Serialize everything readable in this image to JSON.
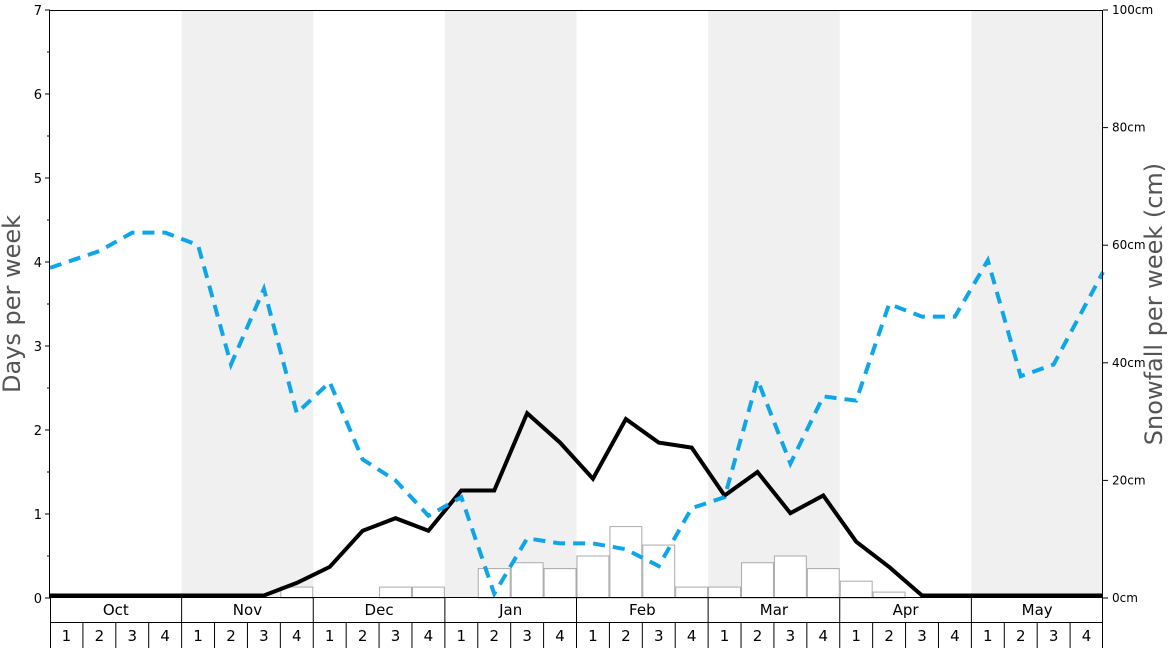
{
  "chart_data": {
    "type": "line",
    "title": "",
    "ylabel_left": "Days per week",
    "ylabel_right": "Snowfall per week (cm)",
    "ylim_left": [
      0,
      7
    ],
    "ylim_right": [
      0,
      100
    ],
    "left_ticks": [
      "0",
      "1",
      "2",
      "3",
      "4",
      "5",
      "6",
      "7"
    ],
    "right_ticks": [
      "0cm",
      "20cm",
      "40cm",
      "60cm",
      "80cm",
      "100cm"
    ],
    "months": [
      "Oct",
      "Nov",
      "Dec",
      "Jan",
      "Feb",
      "Mar",
      "Apr",
      "May"
    ],
    "weeks": [
      "1",
      "2",
      "3",
      "4"
    ],
    "grid": false,
    "legend": "none",
    "colors": {
      "band": "#f0f0f0",
      "snow_days_line": "#000000",
      "dashed_line": "#0ea5e9",
      "bars_stroke": "#aaaaaa",
      "bars_fill": "#ffffff",
      "axis_title": "#555555"
    },
    "series": [
      {
        "kind": "line",
        "axis": "left",
        "style": "solid",
        "values": [
          0.03,
          0.03,
          0.03,
          0.03,
          0.03,
          0.03,
          0.03,
          0.18,
          0.37,
          0.8,
          0.95,
          0.8,
          1.28,
          1.28,
          2.2,
          1.85,
          1.42,
          2.13,
          1.85,
          1.79,
          1.22,
          1.5,
          1.01,
          1.22,
          0.67,
          0.37,
          0.03,
          0.03,
          0.03,
          0.03,
          0.03,
          0.03
        ]
      },
      {
        "kind": "line",
        "axis": "left",
        "style": "dashed",
        "values": [
          3.93,
          4.13,
          4.35,
          4.35,
          4.2,
          2.78,
          3.68,
          2.2,
          2.57,
          1.65,
          1.4,
          0.98,
          1.2,
          0.05,
          0.71,
          0.65,
          0.65,
          0.58,
          0.38,
          1.07,
          1.2,
          2.6,
          1.6,
          2.4,
          2.35,
          3.5,
          3.35,
          3.35,
          4.02,
          2.64,
          2.78,
          3.88
        ]
      },
      {
        "kind": "bar",
        "axis": "left",
        "values": [
          0,
          0,
          0,
          0,
          0,
          0,
          0,
          0.13,
          0,
          0,
          0.13,
          0.13,
          0,
          0.35,
          0.42,
          0.35,
          0.5,
          0.85,
          0.63,
          0.13,
          0.13,
          0.42,
          0.5,
          0.35,
          0.2,
          0.07,
          0,
          0,
          0,
          0,
          0,
          0
        ]
      }
    ]
  }
}
